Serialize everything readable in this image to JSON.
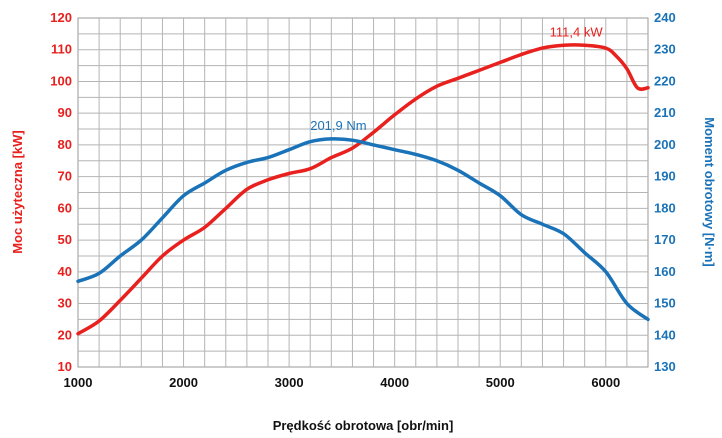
{
  "chart_data": {
    "type": "line",
    "xlabel": "Prędkość obrotowa [obr/min]",
    "ylabel": "Moc użyteczna [kW]",
    "y2label": "Moment obrotowy [N·m]",
    "xlim": [
      1000,
      6400
    ],
    "ylim": [
      10,
      120
    ],
    "y2lim": [
      130,
      240
    ],
    "x_ticks": [
      "1000",
      "2000",
      "3000",
      "4000",
      "5000",
      "6000"
    ],
    "y_ticks": [
      "10",
      "20",
      "30",
      "40",
      "50",
      "60",
      "70",
      "80",
      "90",
      "100",
      "110",
      "120"
    ],
    "y2_ticks": [
      "130",
      "140",
      "150",
      "160",
      "170",
      "180",
      "190",
      "200",
      "210",
      "220",
      "230",
      "240"
    ],
    "grid": true,
    "series": [
      {
        "axis": "left",
        "color": "#e8201e",
        "x": [
          1000,
          1200,
          1400,
          1600,
          1800,
          2000,
          2200,
          2400,
          2600,
          2800,
          3000,
          3200,
          3400,
          3600,
          3800,
          4000,
          4200,
          4400,
          4600,
          4800,
          5000,
          5200,
          5400,
          5600,
          5800,
          6000,
          6100,
          6200,
          6300,
          6400
        ],
        "values": [
          20.5,
          24.5,
          31,
          38,
          45,
          50,
          54,
          60,
          66,
          69,
          71,
          72.5,
          76,
          79,
          84,
          89.5,
          94.5,
          98.5,
          101,
          103.5,
          106,
          108.5,
          110.5,
          111.4,
          111.4,
          110.5,
          108,
          104,
          98,
          98
        ]
      },
      {
        "axis": "right",
        "color": "#1a73b8",
        "x": [
          1000,
          1200,
          1400,
          1600,
          1800,
          2000,
          2200,
          2400,
          2600,
          2800,
          3000,
          3200,
          3400,
          3600,
          3800,
          4000,
          4200,
          4400,
          4600,
          4800,
          5000,
          5200,
          5400,
          5600,
          5800,
          6000,
          6200,
          6400
        ],
        "values": [
          157,
          159.5,
          165,
          170,
          177,
          184,
          188,
          192,
          194.5,
          196,
          198.5,
          201,
          201.9,
          201.5,
          200,
          198.5,
          197,
          195,
          192,
          188,
          184,
          178,
          175,
          172,
          166,
          160,
          150,
          145
        ]
      }
    ],
    "annotations": [
      {
        "text": "111,4 kW",
        "x": 5970,
        "y": 111.4,
        "axis": "left",
        "color": "#e8201e"
      },
      {
        "text": "201,9 Nm",
        "x": 3200,
        "y": 201.9,
        "axis": "right",
        "color": "#1a73b8"
      }
    ]
  }
}
